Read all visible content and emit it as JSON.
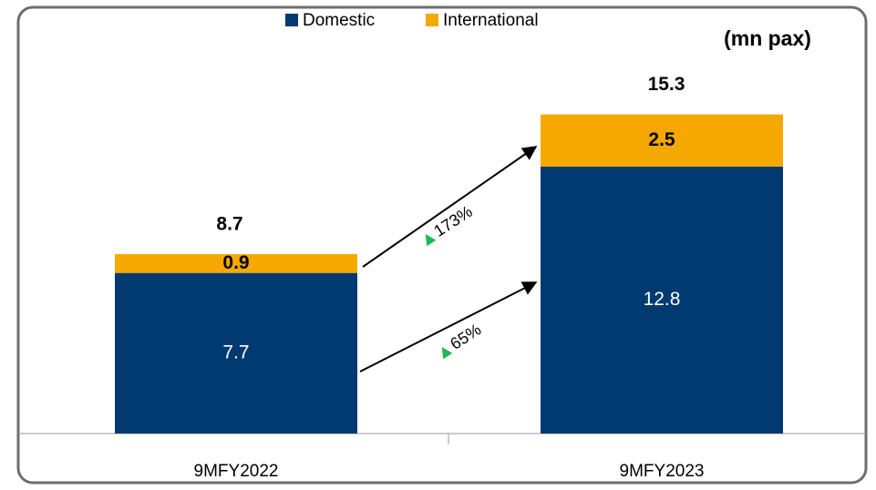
{
  "chart_data": {
    "type": "bar",
    "stacked": true,
    "unit_label": "(mn pax)",
    "categories": [
      "9MFY2022",
      "9MFY2023"
    ],
    "series": [
      {
        "name": "Domestic",
        "color": "#003a70",
        "values": [
          7.7,
          12.8
        ]
      },
      {
        "name": "International",
        "color": "#f5a800",
        "values": [
          0.9,
          2.5
        ]
      }
    ],
    "totals": [
      8.7,
      15.3
    ],
    "annotations": [
      "173%",
      "65%"
    ],
    "ylim": [
      0,
      20
    ]
  }
}
